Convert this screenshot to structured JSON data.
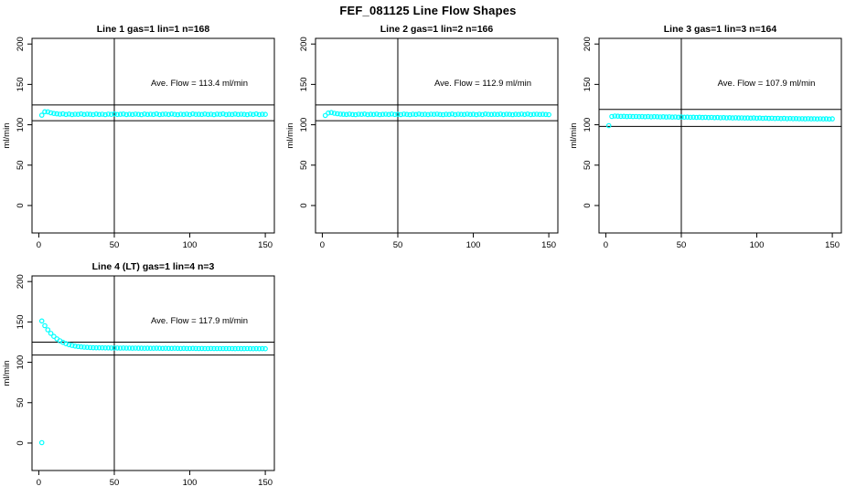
{
  "page_title": "FEF_081125  Line Flow Shapes",
  "chart_data": {
    "type": "scatter",
    "title": "FEF_081125  Line Flow Shapes",
    "xlabel": "",
    "ylabel": "ml/min",
    "point_color": "#00FFFF",
    "axis_color": "#000000",
    "grid": false,
    "legend": false,
    "xlim": [
      -4.5,
      156
    ],
    "ylim": [
      -34,
      207
    ],
    "xticks": [
      0,
      50,
      100,
      150
    ],
    "yticks": [
      0,
      50,
      100,
      150,
      200
    ],
    "vline_x": 50,
    "plots": [
      {
        "title": "Line 1 gas=1 lin=1 n=168",
        "annotation": "Ave. Flow =  113.4  ml/min",
        "ave_flow": 113.4,
        "n": 168,
        "ref_lines": [
          105,
          124.5
        ],
        "x": [
          2,
          4,
          6,
          8,
          10,
          12,
          14,
          16,
          18,
          20,
          22,
          24,
          26,
          28,
          30,
          32,
          34,
          36,
          38,
          40,
          42,
          44,
          46,
          48,
          50,
          52,
          54,
          56,
          58,
          60,
          62,
          64,
          66,
          68,
          70,
          72,
          74,
          76,
          78,
          80,
          82,
          84,
          86,
          88,
          90,
          92,
          94,
          96,
          98,
          100,
          102,
          104,
          106,
          108,
          110,
          112,
          114,
          116,
          118,
          120,
          122,
          124,
          126,
          128,
          130,
          132,
          134,
          136,
          138,
          140,
          142,
          144,
          146,
          148,
          150
        ],
        "y": [
          111.8,
          116.2,
          116.0,
          114.8,
          114.0,
          113.5,
          113.1,
          113.5,
          112.8,
          113.3,
          112.6,
          113.1,
          112.9,
          113.4,
          112.7,
          113.2,
          113.0,
          112.6,
          113.3,
          112.8,
          113.1,
          112.5,
          113.2,
          112.9,
          113.4,
          112.7,
          113.0,
          113.3,
          112.6,
          113.1,
          112.8,
          113.2,
          112.9,
          112.5,
          113.3,
          112.7,
          113.1,
          112.8,
          113.4,
          112.6,
          113.0,
          113.2,
          112.7,
          113.3,
          112.9,
          112.5,
          113.1,
          112.8,
          113.2,
          112.6,
          113.4,
          112.9,
          113.0,
          112.7,
          113.3,
          112.8,
          113.1,
          112.5,
          113.2,
          112.9,
          113.4,
          112.6,
          113.0,
          112.8,
          113.3,
          112.7,
          113.1,
          112.9,
          112.5,
          113.2,
          112.8,
          113.4,
          112.6,
          113.0,
          112.9
        ]
      },
      {
        "title": "Line 2 gas=1 lin=2 n=166",
        "annotation": "Ave. Flow =  112.9  ml/min",
        "ave_flow": 112.9,
        "n": 166,
        "ref_lines": [
          105,
          124.5
        ],
        "x": [
          2,
          4,
          6,
          8,
          10,
          12,
          14,
          16,
          18,
          20,
          22,
          24,
          26,
          28,
          30,
          32,
          34,
          36,
          38,
          40,
          42,
          44,
          46,
          48,
          50,
          52,
          54,
          56,
          58,
          60,
          62,
          64,
          66,
          68,
          70,
          72,
          74,
          76,
          78,
          80,
          82,
          84,
          86,
          88,
          90,
          92,
          94,
          96,
          98,
          100,
          102,
          104,
          106,
          108,
          110,
          112,
          114,
          116,
          118,
          120,
          122,
          124,
          126,
          128,
          130,
          132,
          134,
          136,
          138,
          140,
          142,
          144,
          146,
          148,
          150
        ],
        "y": [
          111.5,
          114.6,
          115.1,
          114.2,
          113.6,
          113.2,
          113.0,
          112.7,
          113.2,
          112.8,
          112.5,
          113.1,
          112.9,
          113.3,
          112.6,
          113.0,
          112.8,
          113.2,
          112.5,
          112.9,
          113.1,
          112.7,
          113.3,
          112.8,
          113.0,
          112.6,
          113.2,
          112.9,
          112.5,
          113.1,
          112.7,
          113.3,
          112.8,
          113.0,
          112.6,
          113.1,
          112.9,
          113.2,
          112.7,
          112.5,
          113.0,
          112.8,
          113.3,
          112.6,
          113.1,
          112.9,
          112.7,
          113.2,
          112.8,
          113.0,
          112.5,
          113.1,
          112.6,
          113.3,
          112.9,
          112.7,
          113.0,
          112.8,
          113.2,
          112.6,
          113.1,
          112.9,
          112.5,
          113.0,
          112.7,
          113.2,
          112.8,
          113.3,
          112.6,
          112.9,
          113.1,
          112.7,
          113.0,
          112.8,
          112.5
        ]
      },
      {
        "title": "Line 3 gas=1 lin=3 n=164",
        "annotation": "Ave. Flow =  107.9  ml/min",
        "ave_flow": 107.9,
        "n": 164,
        "ref_lines": [
          98,
          119
        ],
        "x": [
          2,
          4,
          6,
          8,
          10,
          12,
          14,
          16,
          18,
          20,
          22,
          24,
          26,
          28,
          30,
          32,
          34,
          36,
          38,
          40,
          42,
          44,
          46,
          48,
          50,
          52,
          54,
          56,
          58,
          60,
          62,
          64,
          66,
          68,
          70,
          72,
          74,
          76,
          78,
          80,
          82,
          84,
          86,
          88,
          90,
          92,
          94,
          96,
          98,
          100,
          102,
          104,
          106,
          108,
          110,
          112,
          114,
          116,
          118,
          120,
          122,
          124,
          126,
          128,
          130,
          132,
          134,
          136,
          138,
          140,
          142,
          144,
          146,
          148,
          150
        ],
        "y": [
          99.0,
          110.3,
          110.8,
          110.6,
          110.4,
          110.5,
          110.2,
          110.4,
          110.1,
          110.3,
          110.0,
          110.2,
          109.9,
          110.1,
          109.8,
          110.0,
          109.9,
          109.7,
          109.9,
          109.6,
          109.8,
          109.5,
          109.7,
          109.4,
          109.6,
          109.3,
          109.5,
          109.2,
          109.4,
          109.1,
          109.3,
          109.0,
          109.2,
          108.9,
          109.1,
          108.8,
          109.0,
          108.7,
          108.9,
          108.6,
          108.8,
          108.5,
          108.7,
          108.4,
          108.6,
          108.3,
          108.5,
          108.2,
          108.4,
          108.1,
          108.3,
          108.0,
          108.2,
          107.9,
          108.1,
          107.8,
          108.0,
          107.7,
          107.9,
          107.6,
          107.8,
          107.5,
          107.7,
          107.4,
          107.6,
          107.3,
          107.5,
          107.3,
          107.4,
          107.2,
          107.4,
          107.2,
          107.3,
          107.1,
          107.3
        ]
      },
      {
        "title": "Line 4 (LT) gas=1 lin=4 n=3",
        "annotation": "Ave. Flow =  117.9  ml/min",
        "ave_flow": 117.9,
        "n": 3,
        "ref_lines": [
          109,
          125
        ],
        "x": [
          2,
          2,
          4,
          6,
          8,
          10,
          12,
          14,
          16,
          18,
          20,
          22,
          24,
          26,
          28,
          30,
          32,
          34,
          36,
          38,
          40,
          42,
          44,
          46,
          48,
          50,
          52,
          54,
          56,
          58,
          60,
          62,
          64,
          66,
          68,
          70,
          72,
          74,
          76,
          78,
          80,
          82,
          84,
          86,
          88,
          90,
          92,
          94,
          96,
          98,
          100,
          102,
          104,
          106,
          108,
          110,
          112,
          114,
          116,
          118,
          120,
          122,
          124,
          126,
          128,
          130,
          132,
          134,
          136,
          138,
          140,
          142,
          144,
          146,
          148,
          150
        ],
        "y": [
          0.5,
          151.2,
          145.3,
          140.2,
          135.8,
          132.1,
          129.0,
          126.7,
          124.7,
          123.1,
          121.8,
          120.9,
          120.1,
          119.5,
          119.1,
          118.7,
          118.5,
          118.3,
          118.1,
          118.0,
          117.9,
          117.9,
          117.8,
          117.8,
          117.7,
          117.7,
          117.7,
          117.6,
          117.7,
          117.6,
          117.6,
          117.5,
          117.6,
          117.5,
          117.5,
          117.4,
          117.5,
          117.4,
          117.4,
          117.5,
          117.4,
          117.3,
          117.4,
          117.3,
          117.3,
          117.4,
          117.3,
          117.2,
          117.3,
          117.2,
          117.2,
          117.3,
          117.2,
          117.1,
          117.2,
          117.1,
          117.1,
          117.2,
          117.1,
          117.0,
          117.1,
          117.0,
          117.0,
          117.1,
          117.0,
          116.9,
          117.0,
          116.9,
          116.9,
          117.0,
          116.9,
          116.8,
          116.9,
          116.8,
          116.9,
          116.8
        ]
      }
    ]
  }
}
